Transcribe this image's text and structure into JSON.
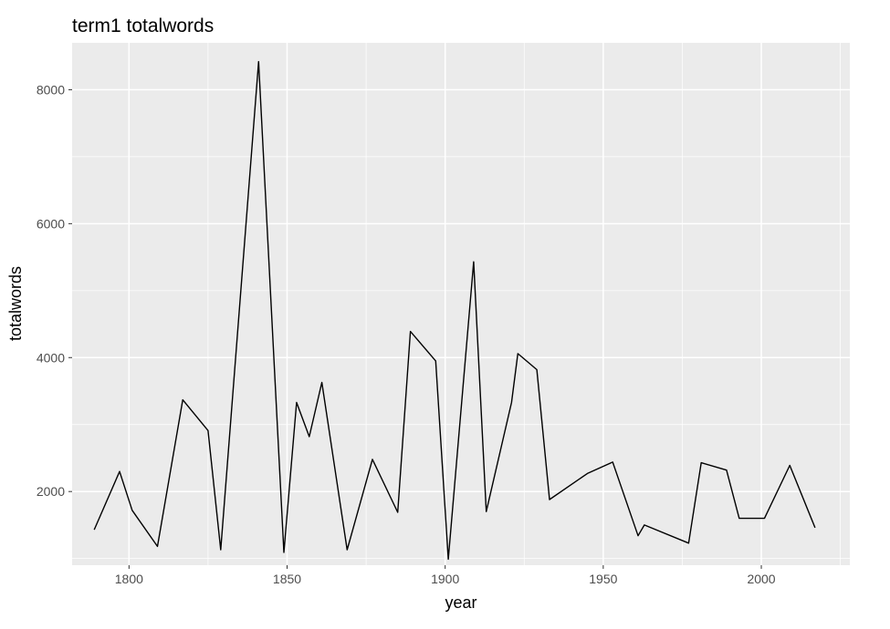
{
  "chart_data": {
    "type": "line",
    "title": "term1 totalwords",
    "xlabel": "year",
    "ylabel": "totalwords",
    "xlim": [
      1782,
      2028
    ],
    "ylim": [
      900,
      8700
    ],
    "xticks": [
      1800,
      1850,
      1900,
      1950,
      2000
    ],
    "yticks": [
      2000,
      4000,
      6000,
      8000
    ],
    "x_tick_labels": [
      "1800",
      "1850",
      "1900",
      "1950",
      "2000"
    ],
    "y_tick_labels": [
      "2000",
      "4000",
      "6000",
      "8000"
    ],
    "grid": true,
    "background": "#EBEBEB",
    "grid_color": "#FFFFFF",
    "line_color": "#000000",
    "series": [
      {
        "x": [
          1789,
          1797,
          1801,
          1809,
          1817,
          1825,
          1829,
          1841,
          1849,
          1853,
          1857,
          1861,
          1869,
          1877,
          1885,
          1889,
          1897,
          1901,
          1909,
          1913,
          1921,
          1923,
          1929,
          1933,
          1945,
          1953,
          1961,
          1963,
          1977,
          1981,
          1989,
          1993,
          2001,
          2009,
          2017
        ],
        "y": [
          1430,
          2300,
          1720,
          1180,
          3370,
          2910,
          1130,
          8420,
          1090,
          3330,
          2820,
          3630,
          1130,
          2480,
          1690,
          4390,
          3950,
          990,
          5430,
          1700,
          3330,
          4060,
          3820,
          1880,
          2270,
          2440,
          1340,
          1500,
          1230,
          2430,
          2320,
          1600,
          1600,
          2390,
          1460
        ]
      }
    ]
  }
}
